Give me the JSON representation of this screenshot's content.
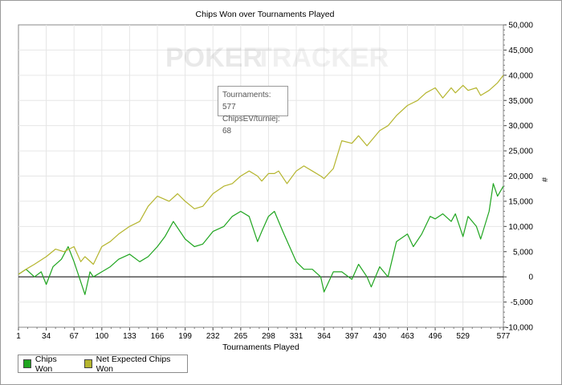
{
  "chart_data": {
    "type": "line",
    "title": "Chips Won over Tournaments Played",
    "xlabel": "Tournaments Played",
    "ylabel": "#",
    "xlim": [
      1,
      577
    ],
    "ylim": [
      -10000,
      50000
    ],
    "x_ticks": [
      1,
      34,
      67,
      100,
      133,
      166,
      199,
      232,
      265,
      298,
      331,
      364,
      397,
      430,
      463,
      496,
      529,
      577
    ],
    "y_ticks": [
      -10000,
      -5000,
      0,
      5000,
      10000,
      15000,
      20000,
      25000,
      30000,
      35000,
      40000,
      45000,
      50000
    ],
    "y_tick_labels": [
      "-10,000",
      "-5,000",
      "0",
      "5,000",
      "10,000",
      "15,000",
      "20,000",
      "25,000",
      "30,000",
      "35,000",
      "40,000",
      "45,000",
      "50,000"
    ],
    "grid": true,
    "legend_position": "bottom-left",
    "series": [
      {
        "name": "Chips Won",
        "color": "#1fa51f",
        "x": [
          1,
          10,
          20,
          28,
          34,
          42,
          52,
          60,
          67,
          75,
          80,
          86,
          90,
          100,
          110,
          120,
          133,
          145,
          155,
          166,
          175,
          185,
          199,
          210,
          220,
          232,
          245,
          255,
          265,
          275,
          285,
          290,
          298,
          305,
          315,
          331,
          340,
          350,
          360,
          364,
          375,
          385,
          397,
          405,
          415,
          420,
          430,
          440,
          450,
          463,
          470,
          480,
          490,
          496,
          505,
          515,
          520,
          529,
          535,
          545,
          550,
          560,
          565,
          570,
          577
        ],
        "values": [
          500,
          1500,
          0,
          1000,
          -1500,
          2000,
          3500,
          6000,
          3000,
          -1000,
          -3500,
          1000,
          0,
          1000,
          2000,
          3500,
          4500,
          3000,
          4000,
          6000,
          8000,
          11000,
          7500,
          6000,
          6500,
          9000,
          10000,
          12000,
          13000,
          12000,
          7000,
          9000,
          12000,
          13000,
          9000,
          3000,
          1500,
          1500,
          0,
          -3000,
          1000,
          1000,
          -500,
          2500,
          0,
          -2000,
          2000,
          0,
          7000,
          8500,
          6000,
          8500,
          12000,
          11500,
          12500,
          11000,
          12500,
          8000,
          12000,
          10000,
          7500,
          13000,
          18500,
          16000,
          18000
        ]
      },
      {
        "name": "Net Expected Chips Won",
        "color": "#b5b52e",
        "x": [
          1,
          10,
          20,
          34,
          45,
          55,
          67,
          75,
          80,
          90,
          100,
          110,
          120,
          133,
          145,
          155,
          166,
          180,
          190,
          199,
          210,
          220,
          232,
          245,
          255,
          265,
          275,
          285,
          290,
          298,
          305,
          310,
          320,
          331,
          340,
          350,
          360,
          364,
          375,
          385,
          397,
          405,
          415,
          430,
          440,
          450,
          463,
          475,
          485,
          496,
          505,
          515,
          520,
          529,
          535,
          545,
          550,
          560,
          570,
          577
        ],
        "values": [
          500,
          1500,
          2500,
          4000,
          5500,
          5000,
          6000,
          3000,
          4000,
          2500,
          6000,
          7000,
          8500,
          10000,
          11000,
          14000,
          16000,
          15000,
          16500,
          15000,
          13500,
          14000,
          16500,
          18000,
          18500,
          20000,
          21000,
          20000,
          19000,
          20500,
          20500,
          21000,
          18500,
          21000,
          22000,
          21000,
          20000,
          19500,
          21500,
          27000,
          26500,
          28000,
          26000,
          29000,
          30000,
          32000,
          34000,
          35000,
          36500,
          37500,
          35500,
          37500,
          36500,
          38000,
          37000,
          37500,
          36000,
          37000,
          38500,
          40000
        ]
      }
    ],
    "annotation": {
      "tournaments_label": "Tournaments: 577",
      "chipsev_label": "ChipsEV/turniej: 68"
    }
  },
  "watermark": {
    "poker": "POKER",
    "tracker": "TRACKER"
  }
}
